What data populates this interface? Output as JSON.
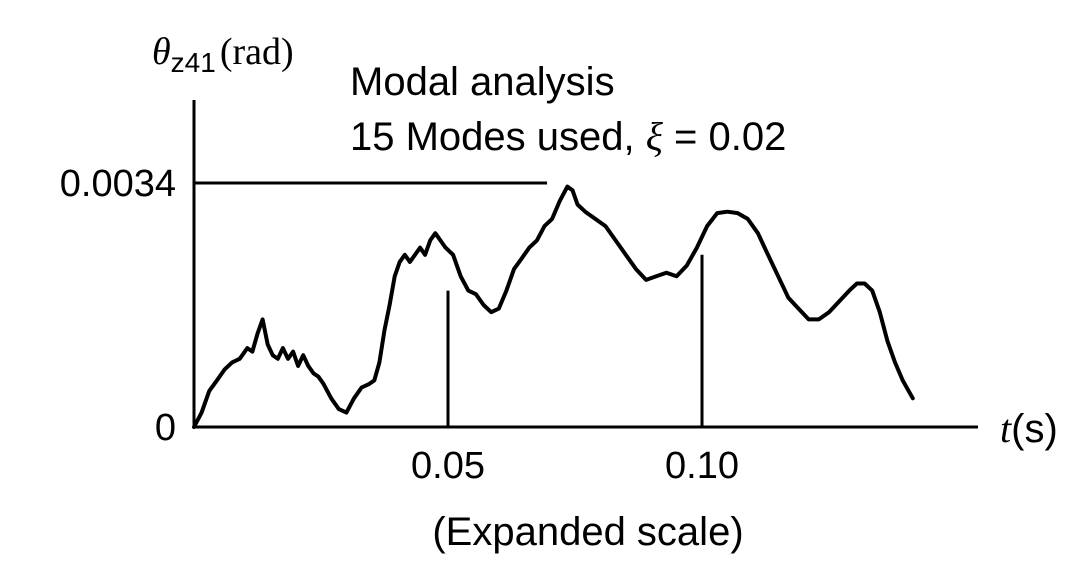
{
  "chart_data": {
    "type": "line",
    "title": "Modal analysis",
    "subtitle_prefix": "15 Modes used, ",
    "subtitle_symbol": "ξ",
    "subtitle_suffix": " = 0.02",
    "ylabel_symbol": "θ",
    "ylabel_subscript": "z41",
    "ylabel_unit": "(rad)",
    "xlabel_symbol": "t",
    "xlabel_unit": "(s)",
    "xnote": "(Expanded scale)",
    "xticks": [
      {
        "value": 0.05,
        "label": "0.05"
      },
      {
        "value": 0.1,
        "label": "0.10"
      }
    ],
    "yticks": [
      {
        "value": 0,
        "label": "0"
      },
      {
        "value": 0.0034,
        "label": "0.0034"
      }
    ],
    "xlim": [
      0,
      0.155
    ],
    "ylim": [
      0,
      0.004
    ],
    "reference_line": {
      "y": 0.0034,
      "x_end": 0.0695
    },
    "series": [
      {
        "color": "#000000",
        "x": [
          0.0,
          0.0015,
          0.003,
          0.0045,
          0.006,
          0.0075,
          0.009,
          0.0105,
          0.0115,
          0.0125,
          0.0135,
          0.0145,
          0.0155,
          0.0165,
          0.0175,
          0.0185,
          0.0195,
          0.0205,
          0.0215,
          0.0225,
          0.0235,
          0.0245,
          0.0255,
          0.027,
          0.0285,
          0.03,
          0.0315,
          0.033,
          0.0345,
          0.0355,
          0.0365,
          0.0375,
          0.0385,
          0.0395,
          0.0405,
          0.0415,
          0.0425,
          0.0435,
          0.0445,
          0.0455,
          0.0465,
          0.0475,
          0.0485,
          0.0495,
          0.051,
          0.0525,
          0.054,
          0.0555,
          0.057,
          0.0585,
          0.06,
          0.0615,
          0.063,
          0.0645,
          0.066,
          0.0675,
          0.069,
          0.0705,
          0.072,
          0.0735,
          0.0745,
          0.0755,
          0.077,
          0.079,
          0.081,
          0.083,
          0.085,
          0.087,
          0.089,
          0.091,
          0.093,
          0.095,
          0.097,
          0.099,
          0.101,
          0.103,
          0.105,
          0.107,
          0.109,
          0.111,
          0.113,
          0.115,
          0.117,
          0.119,
          0.121,
          0.123,
          0.125,
          0.127,
          0.129,
          0.1305,
          0.132,
          0.1335,
          0.135,
          0.1365,
          0.138,
          0.1395,
          0.1415
        ],
        "y": [
          0.0,
          0.0002,
          0.0005,
          0.00065,
          0.0008,
          0.0009,
          0.00095,
          0.0011,
          0.00105,
          0.0013,
          0.0015,
          0.00115,
          0.001,
          0.00095,
          0.0011,
          0.00095,
          0.00105,
          0.00085,
          0.001,
          0.00085,
          0.00075,
          0.0007,
          0.0006,
          0.0004,
          0.00025,
          0.0002,
          0.0004,
          0.00055,
          0.0006,
          0.00065,
          0.0009,
          0.00135,
          0.0017,
          0.0021,
          0.0023,
          0.0024,
          0.0023,
          0.0024,
          0.0025,
          0.0024,
          0.0026,
          0.0027,
          0.0026,
          0.0025,
          0.0024,
          0.0021,
          0.0019,
          0.00185,
          0.0017,
          0.0016,
          0.00165,
          0.0019,
          0.0022,
          0.00235,
          0.0025,
          0.0026,
          0.0028,
          0.0029,
          0.00315,
          0.00335,
          0.0033,
          0.0031,
          0.003,
          0.0029,
          0.0028,
          0.0026,
          0.0024,
          0.0022,
          0.00205,
          0.0021,
          0.00215,
          0.0021,
          0.00225,
          0.0025,
          0.0028,
          0.00298,
          0.003,
          0.00298,
          0.0029,
          0.0027,
          0.0024,
          0.0021,
          0.0018,
          0.00165,
          0.0015,
          0.0015,
          0.0016,
          0.00175,
          0.0019,
          0.002,
          0.002,
          0.0019,
          0.0016,
          0.0012,
          0.0009,
          0.00065,
          0.0004
        ]
      }
    ],
    "markers": [
      {
        "x": 0.05,
        "y_top": 0.0019
      },
      {
        "x": 0.1,
        "y_top": 0.0024
      }
    ]
  }
}
